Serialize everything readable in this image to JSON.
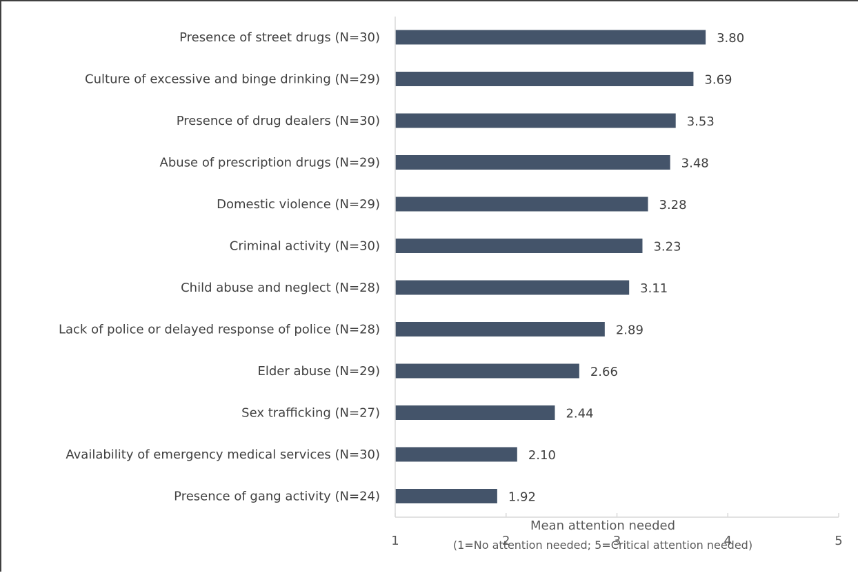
{
  "chart_data": {
    "type": "bar",
    "orientation": "horizontal",
    "categories": [
      "Presence of street drugs (N=30)",
      "Culture of excessive and binge drinking (N=29)",
      "Presence of drug dealers (N=30)",
      "Abuse of prescription drugs (N=29)",
      "Domestic violence (N=29)",
      "Criminal activity (N=30)",
      "Child abuse and neglect (N=28)",
      "Lack of police or delayed response of police (N=28)",
      "Elder abuse (N=29)",
      "Sex trafficking (N=27)",
      "Availability of emergency medical services (N=30)",
      "Presence of gang activity (N=24)"
    ],
    "values": [
      3.8,
      3.69,
      3.53,
      3.48,
      3.28,
      3.23,
      3.11,
      2.89,
      2.66,
      2.44,
      2.1,
      1.92
    ],
    "value_labels": [
      "3.80",
      "3.69",
      "3.53",
      "3.48",
      "3.28",
      "3.23",
      "3.11",
      "2.89",
      "2.66",
      "2.44",
      "2.10",
      "1.92"
    ],
    "xlabel": "Mean attention needed",
    "xlabel_note": "(1=No attention needed; 5=Critical attention needed)",
    "xlim": [
      1,
      5
    ],
    "xticks": [
      "1",
      "2",
      "3",
      "4",
      "5"
    ],
    "grid": false,
    "legend": "none",
    "colors": {
      "bar": "#44546a",
      "axis": "#d9d9d9",
      "text": "#404040"
    }
  }
}
